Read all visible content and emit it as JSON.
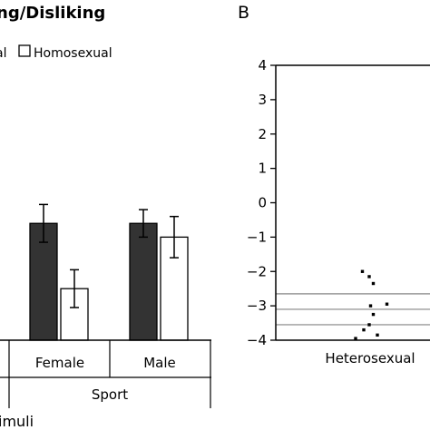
{
  "chart_data": [
    {
      "type": "bar",
      "title": "ng/Disliking",
      "legend": [
        "al",
        "Homosexual"
      ],
      "group_label": "Sport",
      "xlabel": "imuli",
      "categories": [
        "Female",
        "Male"
      ],
      "ylim": [
        -4,
        4
      ],
      "series": [
        {
          "name": "al",
          "color": "#333333",
          "values": [
            -0.6,
            -0.6
          ],
          "errors": [
            0.55,
            0.4
          ]
        },
        {
          "name": "Homosexual",
          "color": "#ffffff",
          "values": [
            -2.5,
            -1.0
          ],
          "errors": [
            0.55,
            0.6
          ]
        }
      ]
    },
    {
      "type": "scatter",
      "panel_label": "B",
      "yticks": [
        "4",
        "3",
        "2",
        "1",
        "0",
        "−1",
        "−2",
        "−3",
        "−4"
      ],
      "ylim": [
        -4,
        4
      ],
      "xlabel": "Heterosexual",
      "reference_lines": [
        -2.65,
        -3.1,
        -3.55
      ],
      "points": [
        {
          "x": -0.35,
          "y": -2.0
        },
        {
          "x": -0.1,
          "y": -2.15
        },
        {
          "x": 0.05,
          "y": -2.35
        },
        {
          "x": -0.05,
          "y": -3.0
        },
        {
          "x": 0.55,
          "y": -2.95
        },
        {
          "x": 0.05,
          "y": -3.25
        },
        {
          "x": -0.1,
          "y": -3.55
        },
        {
          "x": -0.3,
          "y": -3.7
        },
        {
          "x": 0.2,
          "y": -3.85
        },
        {
          "x": -0.6,
          "y": -3.95
        }
      ]
    }
  ]
}
